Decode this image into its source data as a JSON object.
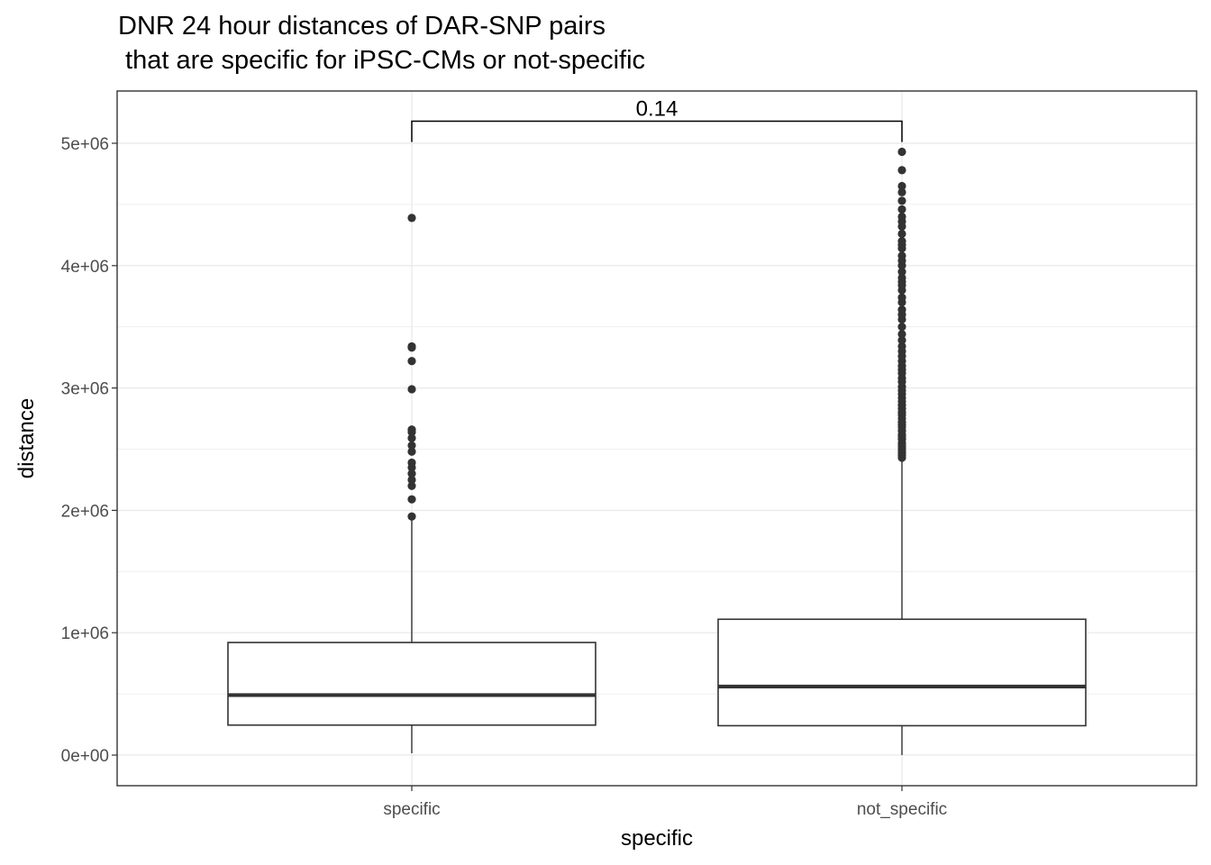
{
  "chart_data": {
    "type": "box",
    "title_line1": "DNR 24 hour distances of DAR-SNP pairs",
    "title_line2": " that are specific for iPSC-CMs or not-specific",
    "xlabel": "specific",
    "ylabel": "distance",
    "ylim": [
      -250000,
      5430000
    ],
    "yticks": [
      {
        "value": 0,
        "label": "0e+00"
      },
      {
        "value": 1000000,
        "label": "1e+06"
      },
      {
        "value": 2000000,
        "label": "2e+06"
      },
      {
        "value": 3000000,
        "label": "3e+06"
      },
      {
        "value": 4000000,
        "label": "4e+06"
      },
      {
        "value": 5000000,
        "label": "5e+06"
      }
    ],
    "categories": [
      "specific",
      "not_specific"
    ],
    "boxes": [
      {
        "category": "specific",
        "min": 15000,
        "q1": 245000,
        "median": 490000,
        "q3": 920000,
        "whisker_high": 1920000,
        "outliers": [
          1950000,
          2090000,
          2200000,
          2250000,
          2300000,
          2350000,
          2390000,
          2480000,
          2530000,
          2590000,
          2640000,
          2660000,
          2990000,
          3220000,
          3330000,
          3340000,
          4390000
        ]
      },
      {
        "category": "not_specific",
        "min": 0,
        "q1": 240000,
        "median": 560000,
        "q3": 1110000,
        "whisker_high": 2410000,
        "outliers": [
          2430000,
          2450000,
          2470000,
          2490000,
          2510000,
          2530000,
          2550000,
          2580000,
          2600000,
          2620000,
          2650000,
          2680000,
          2700000,
          2720000,
          2750000,
          2780000,
          2800000,
          2830000,
          2860000,
          2890000,
          2920000,
          2950000,
          2980000,
          3010000,
          3050000,
          3080000,
          3120000,
          3150000,
          3180000,
          3220000,
          3260000,
          3300000,
          3340000,
          3390000,
          3440000,
          3500000,
          3560000,
          3600000,
          3640000,
          3700000,
          3740000,
          3800000,
          3840000,
          3870000,
          3900000,
          3950000,
          4000000,
          4040000,
          4080000,
          4140000,
          4170000,
          4200000,
          4260000,
          4320000,
          4360000,
          4400000,
          4460000,
          4530000,
          4600000,
          4650000,
          4780000,
          4930000
        ]
      }
    ],
    "comparison": {
      "label": "0.14",
      "from": "specific",
      "to": "not_specific",
      "y": 5180000,
      "tip": 5010000
    },
    "grid": true,
    "colors": {
      "box_line": "#333333",
      "point": "#333333",
      "grid": "#ebebeb",
      "panel_border": "#333333"
    }
  }
}
